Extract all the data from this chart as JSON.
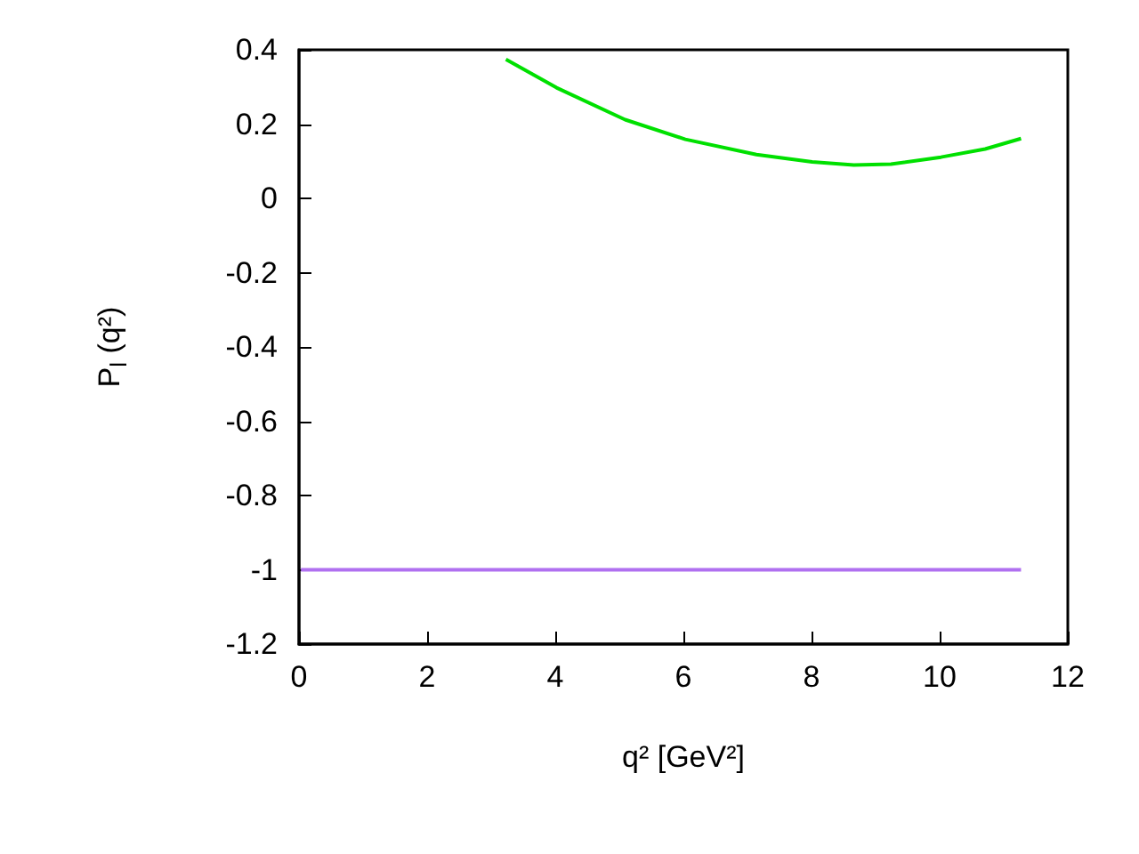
{
  "chart_data": {
    "type": "line",
    "xlabel": "q² [GeV²]",
    "ylabel": "P$_{l}$ (q²)",
    "xlim": [
      0,
      12
    ],
    "xticks": [
      0,
      2,
      4,
      6,
      8,
      10,
      12
    ],
    "ylim": [
      -1.2,
      0.4
    ],
    "yticks": [
      -1.2,
      -1,
      -0.8,
      -0.6,
      -0.4,
      -0.2,
      0,
      0.2,
      0.4
    ],
    "grid": false,
    "marker": "none",
    "line_style": "solid",
    "series": [
      {
        "color": "#00e000",
        "x": [
          3.23,
          4.02,
          5.09,
          6.03,
          7.14,
          8.01,
          8.66,
          9.24,
          10.02,
          10.71,
          11.27
        ],
        "values": [
          0.374,
          0.298,
          0.212,
          0.159,
          0.118,
          0.098,
          0.09,
          0.092,
          0.111,
          0.133,
          0.161
        ]
      },
      {
        "color": "#b070f0",
        "x": [
          0.03,
          11.27
        ],
        "values": [
          -1,
          -1
        ]
      }
    ]
  }
}
